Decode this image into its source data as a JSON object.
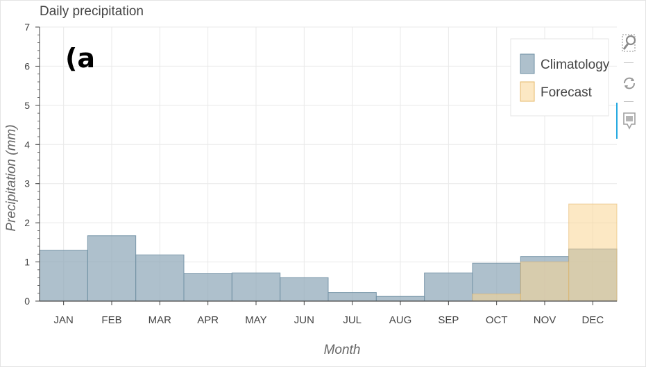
{
  "panel_label": "(a",
  "toolbar": {
    "zoom_icon": "box-zoom-icon",
    "reset_icon": "reset-icon",
    "hover_icon": "hover-icon"
  },
  "chart_data": {
    "type": "bar",
    "title": "Daily precipitation",
    "xlabel": "Month",
    "ylabel": "Precipitation (mm)",
    "ylim": [
      0,
      7
    ],
    "yticks": [
      0,
      1,
      2,
      3,
      4,
      5,
      6,
      7
    ],
    "grid": true,
    "legend_position": "top-right",
    "categories": [
      "JAN",
      "FEB",
      "MAR",
      "APR",
      "MAY",
      "JUN",
      "JUL",
      "AUG",
      "SEP",
      "OCT",
      "NOV",
      "DEC"
    ],
    "series": [
      {
        "name": "Climatology",
        "color": "#8fa8b8",
        "values": [
          1.3,
          1.67,
          1.18,
          0.7,
          0.72,
          0.6,
          0.22,
          0.12,
          0.72,
          0.97,
          1.14,
          1.33
        ]
      },
      {
        "name": "Forecast",
        "color": "#fad594",
        "values": [
          null,
          null,
          null,
          null,
          null,
          null,
          null,
          null,
          null,
          0.18,
          1.0,
          2.48
        ]
      }
    ]
  }
}
